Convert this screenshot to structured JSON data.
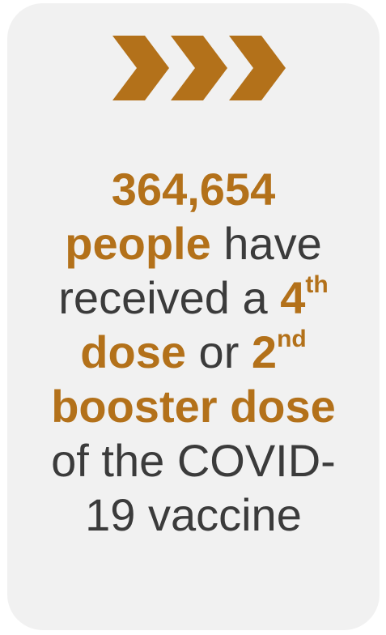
{
  "colors": {
    "accent": "#b3711a",
    "text": "#3b3b3b",
    "card_background": "#f1f1f1"
  },
  "icon": "triple-chevron-right-icon",
  "message": {
    "count": "364,654",
    "people": "people",
    "have": " have",
    "received_a": "received a ",
    "fourth_num": "4",
    "fourth_suffix": "th",
    "dose": "dose",
    "or": " or ",
    "second_num": "2",
    "second_suffix": "nd",
    "booster_dose": "booster dose",
    "of_the": "of the COVID-",
    "vaccine": "19 vaccine"
  }
}
